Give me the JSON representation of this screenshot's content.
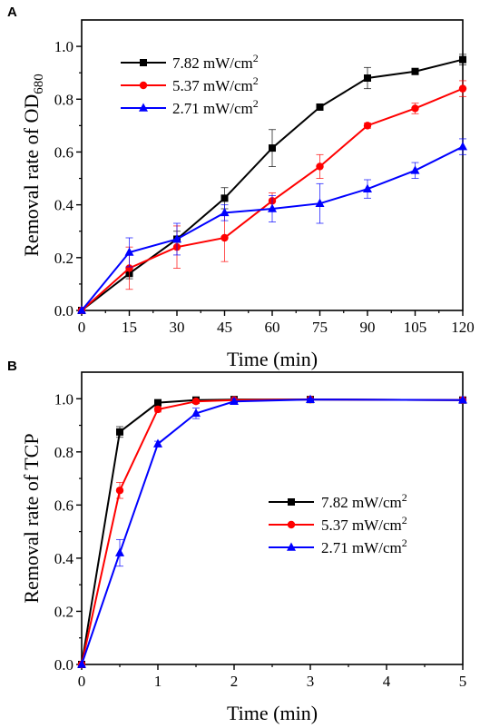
{
  "chart_data": [
    {
      "panel": "A",
      "type": "line",
      "xlabel": "Time (min)",
      "ylabel": "Removal rate of OD",
      "ylabel_sub": "680",
      "xlim": [
        0,
        120
      ],
      "ylim": [
        0,
        1.1
      ],
      "xticks": [
        0,
        15,
        30,
        45,
        60,
        75,
        90,
        105,
        120
      ],
      "yticks": [
        0.0,
        0.2,
        0.4,
        0.6,
        0.8,
        1.0
      ],
      "x": [
        0,
        15,
        30,
        45,
        60,
        75,
        90,
        105,
        120
      ],
      "legend_position": "top-left",
      "grid": false,
      "series": [
        {
          "name": "7.82 mW/cm",
          "sup": "2",
          "color": "#000000",
          "marker": "square",
          "values": [
            0,
            0.14,
            0.27,
            0.425,
            0.615,
            0.77,
            0.88,
            0.905,
            0.95
          ],
          "errors": [
            0,
            0.02,
            0.03,
            0.04,
            0.07,
            0.01,
            0.04,
            0.01,
            0.02
          ]
        },
        {
          "name": "5.37 mW/cm",
          "sup": "2",
          "color": "#ff0000",
          "marker": "circle",
          "values": [
            0,
            0.16,
            0.24,
            0.275,
            0.415,
            0.545,
            0.7,
            0.765,
            0.84
          ],
          "errors": [
            0,
            0.08,
            0.08,
            0.09,
            0.03,
            0.045,
            0.01,
            0.02,
            0.03
          ]
        },
        {
          "name": "2.71 mW/cm",
          "sup": "2",
          "color": "#0000ff",
          "marker": "triangle",
          "values": [
            0,
            0.22,
            0.27,
            0.37,
            0.385,
            0.405,
            0.46,
            0.53,
            0.62
          ],
          "errors": [
            0,
            0.055,
            0.06,
            0.03,
            0.05,
            0.075,
            0.035,
            0.03,
            0.03
          ]
        }
      ]
    },
    {
      "panel": "B",
      "type": "line",
      "xlabel": "Time (min)",
      "ylabel": "Removal rate of TCP",
      "xlim": [
        0,
        5
      ],
      "ylim": [
        0,
        1.1
      ],
      "xticks": [
        0,
        1,
        2,
        3,
        4,
        5
      ],
      "yticks": [
        0.0,
        0.2,
        0.4,
        0.6,
        0.8,
        1.0
      ],
      "x": [
        0,
        0.5,
        1,
        1.5,
        2,
        3,
        5
      ],
      "legend_position": "center-right",
      "grid": false,
      "series": [
        {
          "name": "7.82 mW/cm",
          "sup": "2",
          "color": "#000000",
          "marker": "square",
          "values": [
            0,
            0.875,
            0.985,
            0.995,
            0.997,
            0.997,
            0.995
          ],
          "errors": [
            0,
            0.02,
            0.01,
            0.005,
            0.005,
            0.005,
            0.005
          ]
        },
        {
          "name": "5.37 mW/cm",
          "sup": "2",
          "color": "#ff0000",
          "marker": "circle",
          "values": [
            0,
            0.655,
            0.96,
            0.99,
            0.995,
            0.997,
            0.995
          ],
          "errors": [
            0,
            0.03,
            0.01,
            0.005,
            0.005,
            0.005,
            0.005
          ]
        },
        {
          "name": "2.71 mW/cm",
          "sup": "2",
          "color": "#0000ff",
          "marker": "triangle",
          "values": [
            0,
            0.42,
            0.83,
            0.945,
            0.99,
            0.997,
            0.995
          ],
          "errors": [
            0,
            0.05,
            0.01,
            0.02,
            0.01,
            0.005,
            0.005
          ]
        }
      ]
    }
  ]
}
